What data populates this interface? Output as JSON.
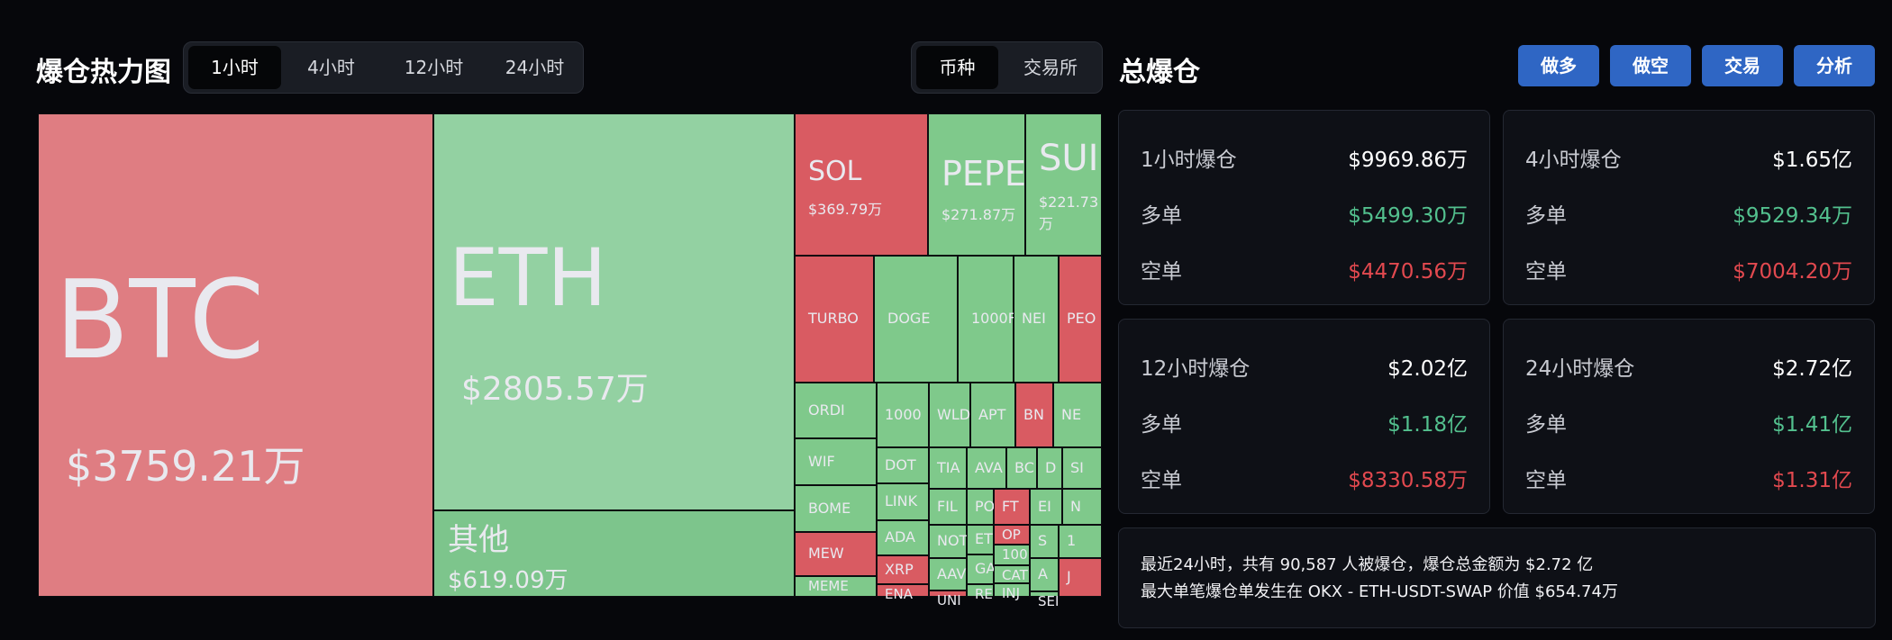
{
  "header": {
    "title": "爆仓热力图",
    "right_title": "总爆仓"
  },
  "time_tabs": [
    "1小时",
    "4小时",
    "12小时",
    "24小时"
  ],
  "view_tabs": [
    "币种",
    "交易所"
  ],
  "actions": [
    "做多",
    "做空",
    "交易",
    "分析"
  ],
  "colors": {
    "red_tile": "#d95b62",
    "green_tile": "#7fc98b",
    "up": "#53c08e",
    "down": "#e2494f",
    "accent": "#2f66c4"
  },
  "treemap": {
    "btc": {
      "name": "BTC",
      "value": "$3759.21万"
    },
    "eth": {
      "name": "ETH",
      "value": "$2805.57万"
    },
    "other": {
      "name": "其他",
      "value": "$619.09万"
    },
    "sol": {
      "name": "SOL",
      "value": "$369.79万"
    },
    "pepe": {
      "name": "PEPE",
      "value": "$271.87万"
    },
    "sui": {
      "name": "SUI",
      "value": "$221.73万"
    },
    "small": [
      "TURBO",
      "DOGE",
      "1000F",
      "NEI",
      "PEO",
      "ORDI",
      "1000",
      "WLD",
      "APT",
      "BN",
      "NE",
      "WIF",
      "DOT",
      "TIA",
      "AVA",
      "BC",
      "D",
      "SI",
      "BOME",
      "LINK",
      "FIL",
      "PO",
      "FT",
      "EI",
      "N",
      "ADA",
      "NOT",
      "ET",
      "OP",
      "S",
      "1",
      "MEW",
      "XRP",
      "AAV",
      "GA",
      "100",
      "A",
      "MEME",
      "ENA",
      "UNI",
      "RE",
      "CAT",
      "INJ",
      "SEI",
      "J"
    ]
  },
  "summary": [
    {
      "title": "1小时爆仓",
      "total": "$9969.86万",
      "long_label": "多单",
      "long": "$5499.30万",
      "short_label": "空单",
      "short": "$4470.56万"
    },
    {
      "title": "4小时爆仓",
      "total": "$1.65亿",
      "long_label": "多单",
      "long": "$9529.34万",
      "short_label": "空单",
      "short": "$7004.20万"
    },
    {
      "title": "12小时爆仓",
      "total": "$2.02亿",
      "long_label": "多单",
      "long": "$1.18亿",
      "short_label": "空单",
      "short": "$8330.58万"
    },
    {
      "title": "24小时爆仓",
      "total": "$2.72亿",
      "long_label": "多单",
      "long": "$1.41亿",
      "short_label": "空单",
      "short": "$1.31亿"
    }
  ],
  "info": {
    "line1": "最近24小时，共有 90,587 人被爆仓，爆仓总金额为 $2.72 亿",
    "line2": "最大单笔爆仓单发生在 OKX - ETH-USDT-SWAP 价值 $654.74万"
  }
}
